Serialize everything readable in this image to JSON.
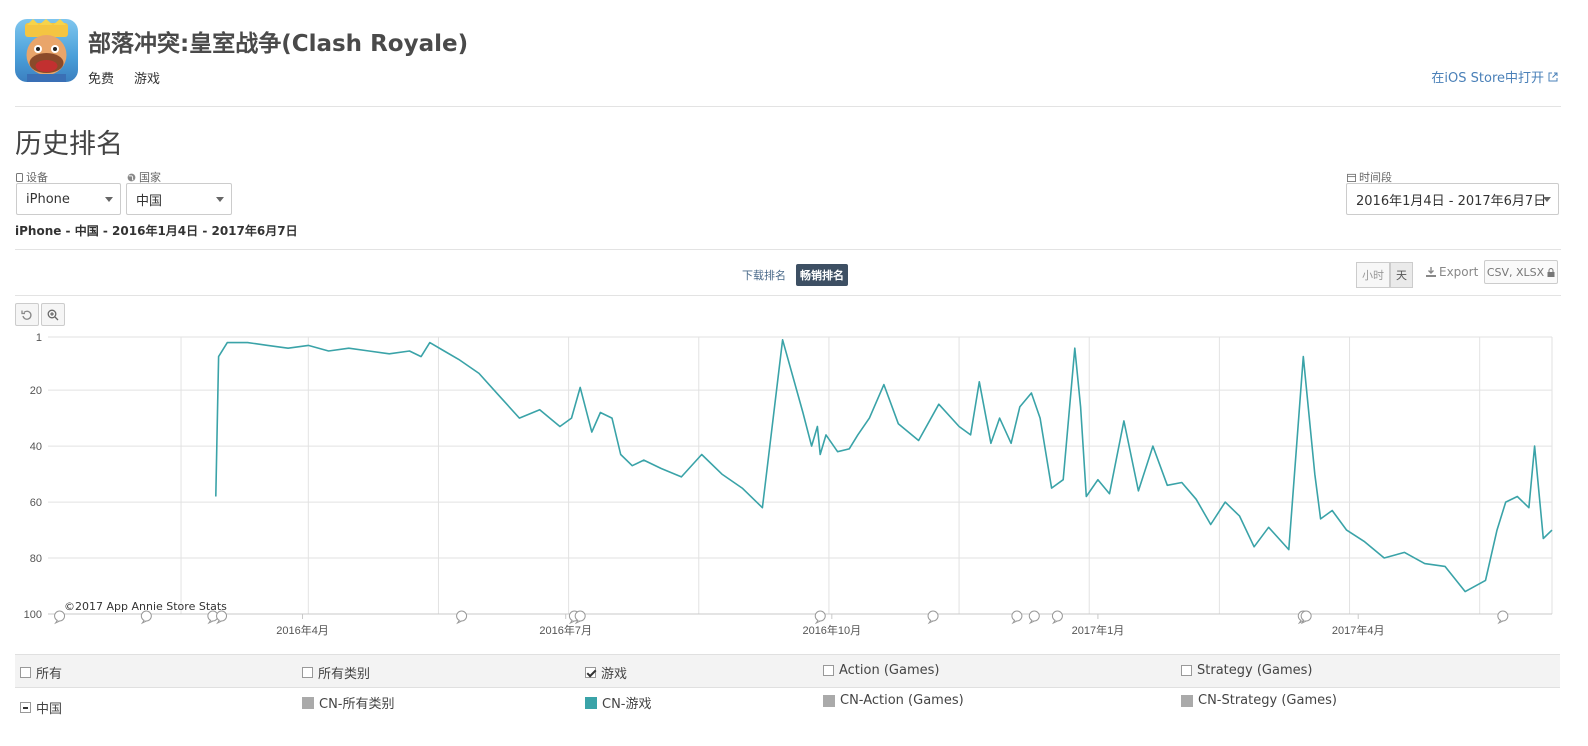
{
  "app": {
    "title": "部落冲突:皇室战争(Clash Royale)",
    "price": "免费",
    "category": "游戏",
    "ios_link": "在iOS Store中打开"
  },
  "section_title": "历史排名",
  "filters": {
    "device_label": "设备",
    "device_value": "iPhone",
    "country_label": "国家",
    "country_value": "中国",
    "period_label": "时间段",
    "period_value": "2016年1月4日 - 2017年6月7日"
  },
  "summary": "iPhone - 中国 - 2016年1月4日 - 2017年6月7日",
  "rank_tabs": [
    {
      "label": "下载排名",
      "active": false
    },
    {
      "label": "畅销排名",
      "active": true
    }
  ],
  "granularity": [
    {
      "label": "小时",
      "selected": false
    },
    {
      "label": "天",
      "selected": true
    }
  ],
  "export_label": "Export",
  "csv_label": "CSV, XLSX",
  "copyright": "©2017 App Annie Store Stats",
  "colors": {
    "series": "#3aa3a8",
    "link": "#4a80b8",
    "active_tab": "#3d4f63"
  },
  "legend": {
    "header": [
      {
        "label": "所有",
        "checked": false
      },
      {
        "label": "所有类别",
        "checked": false
      },
      {
        "label": "游戏",
        "checked": true
      },
      {
        "label": "Action (Games)",
        "checked": false
      },
      {
        "label": "Strategy (Games)",
        "checked": false
      }
    ],
    "row_label": "中国",
    "row_items": [
      {
        "label": "CN-所有类别",
        "color": "#aaaaaa"
      },
      {
        "label": "CN-游戏",
        "color": "#3aa3a8"
      },
      {
        "label": "CN-Action (Games)",
        "color": "#aaaaaa"
      },
      {
        "label": "CN-Strategy (Games)",
        "color": "#aaaaaa"
      }
    ]
  },
  "chart_data": {
    "type": "line",
    "title": "",
    "y_axis_reversed": true,
    "ylim": [
      1,
      100
    ],
    "y_ticks": [
      "1",
      "20",
      "40",
      "60",
      "80",
      "100"
    ],
    "x_tick_labels": [
      "2016年4月",
      "2016年7月",
      "2016年10月",
      "2017年1月",
      "2017年4月"
    ],
    "grid": true,
    "series": [
      {
        "name": "CN-游戏",
        "x": [
          "2016-03-02",
          "2016-03-03",
          "2016-03-06",
          "2016-03-13",
          "2016-03-20",
          "2016-03-27",
          "2016-04-03",
          "2016-04-10",
          "2016-04-17",
          "2016-04-24",
          "2016-05-01",
          "2016-05-08",
          "2016-05-12",
          "2016-05-15",
          "2016-05-20",
          "2016-05-25",
          "2016-06-01",
          "2016-06-08",
          "2016-06-15",
          "2016-06-22",
          "2016-06-29",
          "2016-07-03",
          "2016-07-06",
          "2016-07-10",
          "2016-07-13",
          "2016-07-17",
          "2016-07-20",
          "2016-07-24",
          "2016-07-28",
          "2016-08-03",
          "2016-08-10",
          "2016-08-17",
          "2016-08-24",
          "2016-08-31",
          "2016-09-07",
          "2016-09-14",
          "2016-09-21",
          "2016-09-24",
          "2016-09-26",
          "2016-09-27",
          "2016-09-29",
          "2016-10-03",
          "2016-10-07",
          "2016-10-10",
          "2016-10-14",
          "2016-10-19",
          "2016-10-24",
          "2016-10-31",
          "2016-11-07",
          "2016-11-14",
          "2016-11-18",
          "2016-11-21",
          "2016-11-25",
          "2016-11-28",
          "2016-12-02",
          "2016-12-05",
          "2016-12-09",
          "2016-12-12",
          "2016-12-16",
          "2016-12-20",
          "2016-12-24",
          "2016-12-26",
          "2016-12-28",
          "2017-01-01",
          "2017-01-05",
          "2017-01-10",
          "2017-01-15",
          "2017-01-20",
          "2017-01-25",
          "2017-01-30",
          "2017-02-04",
          "2017-02-09",
          "2017-02-14",
          "2017-02-19",
          "2017-02-24",
          "2017-03-01",
          "2017-03-08",
          "2017-03-13",
          "2017-03-17",
          "2017-03-19",
          "2017-03-23",
          "2017-03-28",
          "2017-04-03",
          "2017-04-10",
          "2017-04-17",
          "2017-04-24",
          "2017-05-01",
          "2017-05-08",
          "2017-05-15",
          "2017-05-19",
          "2017-05-22",
          "2017-05-26",
          "2017-05-30",
          "2017-06-01",
          "2017-06-04",
          "2017-06-07"
        ],
        "values": [
          58,
          8,
          3,
          3,
          4,
          5,
          4,
          6,
          5,
          6,
          7,
          6,
          8,
          3,
          6,
          9,
          14,
          22,
          30,
          27,
          33,
          30,
          19,
          35,
          28,
          30,
          43,
          47,
          45,
          48,
          51,
          43,
          50,
          55,
          62,
          2,
          28,
          40,
          33,
          43,
          36,
          42,
          41,
          36,
          30,
          18,
          32,
          38,
          25,
          33,
          36,
          17,
          39,
          30,
          39,
          26,
          21,
          30,
          55,
          52,
          5,
          26,
          58,
          52,
          57,
          31,
          56,
          40,
          54,
          53,
          59,
          68,
          60,
          65,
          76,
          69,
          77,
          8,
          50,
          66,
          63,
          70,
          74,
          80,
          78,
          82,
          83,
          92,
          88,
          70,
          60,
          58,
          62,
          40,
          73,
          70
        ]
      }
    ]
  }
}
